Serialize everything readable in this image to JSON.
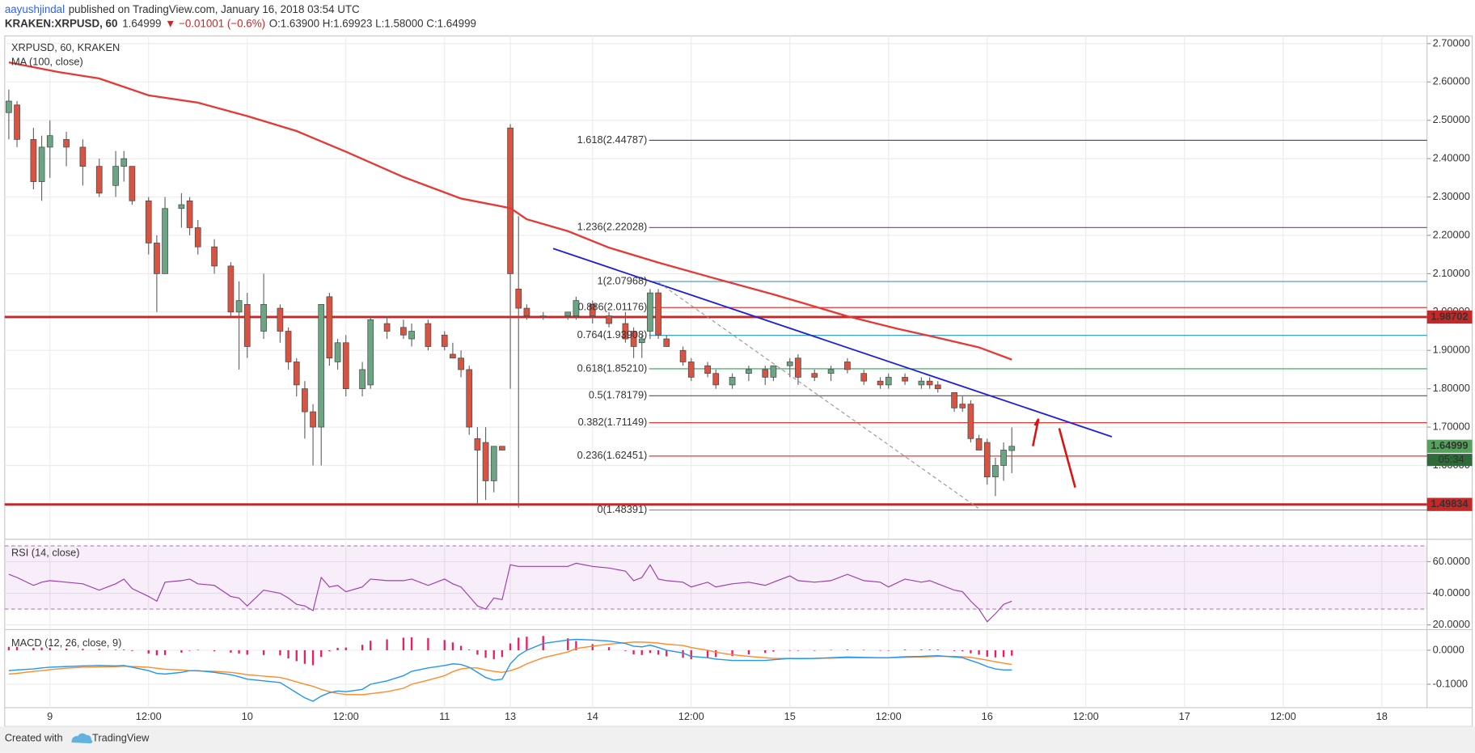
{
  "header": {
    "author": "aayushjindal",
    "published": "published on TradingView.com, January 16, 2018 03:54 UTC",
    "symbol": "KRAKEN:XRPUSD, 60",
    "price": "1.64999",
    "change": "▼ −0.01001 (−0.6%)",
    "ohlc": "O:1.63900 H:1.69923 L:1.58000 C:1.64999"
  },
  "footer": {
    "created": "Created with",
    "brand": "TradingView"
  },
  "chart_data": {
    "type": "candlestick",
    "title": "XRPUSD, 60, KRAKEN",
    "up_color": "#6ba583",
    "down_color": "#d75442",
    "xlim": [
      -0.5,
      172.5
    ],
    "xticks": [
      {
        "value": 5,
        "label": "9"
      },
      {
        "value": 17,
        "label": "12:00"
      },
      {
        "value": 29,
        "label": "10"
      },
      {
        "value": 41,
        "label": "12:00"
      },
      {
        "value": 53,
        "label": "11"
      },
      {
        "value": 61,
        "label": "13"
      },
      {
        "value": 71,
        "label": "14"
      },
      {
        "value": 83,
        "label": "12:00"
      },
      {
        "value": 95,
        "label": "15"
      },
      {
        "value": 107,
        "label": "12:00"
      },
      {
        "value": 119,
        "label": "16"
      },
      {
        "value": 131,
        "label": "12:00"
      },
      {
        "value": 143,
        "label": "17"
      },
      {
        "value": 155,
        "label": "12:00"
      },
      {
        "value": 167,
        "label": "18"
      }
    ],
    "ylim": [
      1.41,
      2.72
    ],
    "yticks": [
      {
        "value": 2.7,
        "label": "2.70000"
      },
      {
        "value": 2.6,
        "label": "2.60000"
      },
      {
        "value": 2.5,
        "label": "2.50000"
      },
      {
        "value": 2.4,
        "label": "2.40000"
      },
      {
        "value": 2.3,
        "label": "2.30000"
      },
      {
        "value": 2.2,
        "label": "2.20000"
      },
      {
        "value": 2.1,
        "label": "2.10000"
      },
      {
        "value": 2.0,
        "label": "2.00000"
      },
      {
        "value": 1.9,
        "label": "1.90000"
      },
      {
        "value": 1.8,
        "label": "1.80000"
      },
      {
        "value": 1.7,
        "label": "1.70000"
      },
      {
        "value": 1.6,
        "label": "1.60000"
      }
    ],
    "grid": true,
    "candles": {
      "x": [
        0,
        1,
        3,
        4,
        5,
        7,
        9,
        11,
        13,
        14,
        15,
        17,
        18,
        19,
        21,
        22,
        23,
        25,
        27,
        28,
        29,
        31,
        33,
        34,
        35,
        36,
        37,
        38,
        39,
        40,
        41,
        43,
        44,
        46,
        48,
        49,
        51,
        53,
        54,
        55,
        56,
        57,
        58,
        59,
        60,
        61,
        62,
        63,
        65,
        68,
        69,
        71,
        73,
        75,
        76,
        77,
        78,
        79,
        80,
        82,
        83,
        85,
        86,
        88,
        90,
        92,
        93,
        95,
        96,
        98,
        100,
        102,
        104,
        106,
        107,
        109,
        111,
        112,
        113,
        115,
        116,
        117,
        118,
        119,
        120,
        121,
        122
      ],
      "open": [
        2.52,
        2.54,
        2.45,
        2.34,
        2.43,
        2.45,
        2.43,
        2.38,
        2.33,
        2.38,
        2.38,
        2.29,
        2.18,
        2.1,
        2.27,
        2.29,
        2.22,
        2.17,
        2.12,
        2.0,
        2.02,
        1.95,
        2.01,
        1.95,
        1.87,
        1.8,
        1.74,
        1.7,
        2.04,
        1.87,
        1.92,
        1.8,
        1.81,
        1.97,
        1.96,
        1.93,
        1.97,
        1.94,
        1.89,
        1.88,
        1.85,
        1.67,
        1.66,
        1.56,
        1.65,
        2.48,
        2.06,
        2.01,
        1.99,
        1.99,
        1.99,
        2.02,
        1.99,
        1.97,
        1.95,
        1.92,
        1.95,
        2.05,
        1.93,
        1.9,
        1.87,
        1.86,
        1.84,
        1.81,
        1.84,
        1.85,
        1.83,
        1.86,
        1.88,
        1.84,
        1.84,
        1.87,
        1.84,
        1.82,
        1.81,
        1.83,
        1.81,
        1.82,
        1.81,
        1.79,
        1.76,
        1.76,
        1.67,
        1.66,
        1.57,
        1.6,
        1.639
      ],
      "high": [
        2.58,
        2.55,
        2.48,
        2.46,
        2.5,
        2.47,
        2.45,
        2.4,
        2.42,
        2.42,
        2.38,
        2.3,
        2.2,
        2.3,
        2.31,
        2.3,
        2.24,
        2.19,
        2.13,
        2.08,
        2.05,
        2.1,
        2.02,
        1.96,
        1.88,
        1.82,
        1.76,
        2.02,
        2.05,
        1.93,
        1.94,
        1.87,
        1.99,
        1.99,
        1.98,
        1.97,
        1.98,
        1.95,
        1.92,
        1.9,
        1.86,
        1.7,
        1.7,
        1.65,
        1.65,
        2.49,
        2.25,
        2.02,
        2.0,
        2.0,
        2.04,
        2.03,
        2.0,
        2.0,
        1.96,
        1.94,
        2.06,
        2.06,
        1.94,
        1.91,
        1.88,
        1.87,
        1.85,
        1.84,
        1.86,
        1.86,
        1.86,
        1.88,
        1.89,
        1.85,
        1.86,
        1.88,
        1.85,
        1.83,
        1.84,
        1.84,
        1.83,
        1.83,
        1.82,
        1.79,
        1.78,
        1.77,
        1.68,
        1.67,
        1.62,
        1.66,
        1.69923
      ],
      "low": [
        2.45,
        2.43,
        2.32,
        2.29,
        2.35,
        2.38,
        2.33,
        2.3,
        2.3,
        2.34,
        2.28,
        2.15,
        2.0,
        2.1,
        2.22,
        2.2,
        2.15,
        2.1,
        1.99,
        1.85,
        1.88,
        1.93,
        1.92,
        1.85,
        1.78,
        1.67,
        1.6,
        1.6,
        1.86,
        1.85,
        1.78,
        1.78,
        1.8,
        1.93,
        1.93,
        1.91,
        1.9,
        1.9,
        1.88,
        1.83,
        1.68,
        1.5,
        1.51,
        1.53,
        1.64,
        1.8,
        1.49,
        1.98,
        1.98,
        1.98,
        1.98,
        1.97,
        1.96,
        1.92,
        1.88,
        1.88,
        1.93,
        1.93,
        1.91,
        1.86,
        1.82,
        1.83,
        1.8,
        1.8,
        1.82,
        1.81,
        1.82,
        1.83,
        1.81,
        1.82,
        1.82,
        1.84,
        1.81,
        1.8,
        1.8,
        1.81,
        1.8,
        1.8,
        1.79,
        1.74,
        1.74,
        1.66,
        1.64,
        1.55,
        1.52,
        1.56,
        1.58
      ],
      "close": [
        2.55,
        2.45,
        2.34,
        2.43,
        2.46,
        2.43,
        2.38,
        2.31,
        2.38,
        2.4,
        2.29,
        2.18,
        2.1,
        2.27,
        2.28,
        2.22,
        2.17,
        2.12,
        2.0,
        2.03,
        1.91,
        2.02,
        1.95,
        1.87,
        1.81,
        1.74,
        1.7,
        2.02,
        1.88,
        1.92,
        1.8,
        1.85,
        1.98,
        1.95,
        1.94,
        1.95,
        1.91,
        1.91,
        1.88,
        1.85,
        1.7,
        1.64,
        1.56,
        1.65,
        1.64,
        2.1,
        2.01,
        1.99,
        1.99,
        2.0,
        2.03,
        1.99,
        1.97,
        1.93,
        1.91,
        1.93,
        2.05,
        1.94,
        1.91,
        1.87,
        1.83,
        1.84,
        1.81,
        1.83,
        1.85,
        1.83,
        1.86,
        1.87,
        1.83,
        1.83,
        1.85,
        1.85,
        1.82,
        1.81,
        1.83,
        1.82,
        1.82,
        1.81,
        1.8,
        1.75,
        1.75,
        1.67,
        1.64,
        1.57,
        1.6,
        1.64,
        1.64999
      ]
    },
    "ma": {
      "name": "MA (100, close)",
      "color": "#e53935",
      "x": [
        0,
        6,
        11,
        17,
        23,
        29,
        35,
        41,
        48,
        55,
        61,
        63,
        68,
        73,
        79,
        86,
        93,
        97,
        102,
        108,
        113,
        118,
        122
      ],
      "values": [
        2.651,
        2.626,
        2.609,
        2.565,
        2.546,
        2.511,
        2.472,
        2.418,
        2.352,
        2.296,
        2.271,
        2.242,
        2.211,
        2.168,
        2.129,
        2.087,
        2.046,
        2.021,
        1.989,
        1.957,
        1.933,
        1.908,
        1.876
      ]
    },
    "fib_levels": [
      {
        "label": "1.618(2.44787)",
        "value": 2.44787,
        "color": "#3a3ac2"
      },
      {
        "label": "1.236(2.22028)",
        "value": 2.22028,
        "color": "#a83cc0"
      },
      {
        "label": "1(2.07968)",
        "value": 2.07968,
        "color": "#4a90c8"
      },
      {
        "label": "0.886(2.01176)",
        "value": 2.01176,
        "color": "#e53935"
      },
      {
        "label": "0.764(1.93908)",
        "value": 1.93908,
        "color": "#2196c8"
      },
      {
        "label": "0.618(1.85210)",
        "value": 1.8521,
        "color": "#2aa35a"
      },
      {
        "label": "0.5(1.78179)",
        "value": 1.78179,
        "color": "#555555"
      },
      {
        "label": "0.382(1.71149)",
        "value": 1.71149,
        "color": "#e53935"
      },
      {
        "label": "0.236(1.62451)",
        "value": 1.62451,
        "color": "#e53935"
      },
      {
        "label": "0(1.48391)",
        "value": 1.48391,
        "color": "#888888"
      }
    ],
    "levels": [
      1.98702,
      1.49834
    ],
    "level_color": "#c62828",
    "last_price": 1.64999,
    "last_color": "#53a35a",
    "countdown": "05:34",
    "rsi": {
      "title": "RSI (14, close)",
      "color": "#9c3fae",
      "ylim": [
        17.6,
        73
      ],
      "yticks": [
        {
          "value": 60,
          "label": "60.0000"
        },
        {
          "value": 40,
          "label": "40.0000"
        },
        {
          "value": 20,
          "label": "20.0000"
        }
      ],
      "bands": [
        30,
        70
      ],
      "values": [
        52,
        50,
        45,
        47,
        48,
        47,
        46,
        42,
        46,
        49,
        43,
        38,
        35,
        47,
        48,
        49,
        46,
        45,
        38,
        37,
        32,
        42,
        40,
        37,
        33,
        32,
        29,
        50,
        44,
        45,
        41,
        44,
        49,
        48,
        48,
        49,
        45,
        49,
        46,
        44,
        38,
        32,
        30,
        37,
        36,
        58,
        57,
        57,
        57,
        57,
        59,
        57,
        56,
        54,
        48,
        50,
        58,
        49,
        48,
        47,
        44,
        47,
        44,
        46,
        47,
        45,
        47,
        51,
        48,
        47,
        48,
        52,
        48,
        47,
        44,
        49,
        47,
        48,
        46,
        42,
        41,
        35,
        30,
        22,
        27,
        33,
        35
      ]
    },
    "macd": {
      "title": "MACD (12, 26, close, 9)",
      "ylim": [
        -0.169,
        0.058
      ],
      "yticks": [
        {
          "value": 0,
          "label": "0.0000"
        },
        {
          "value": -0.1,
          "label": "-0.1000"
        }
      ],
      "macd": {
        "color": "#2196f3",
        "values": [
          -0.06,
          -0.058,
          -0.055,
          -0.052,
          -0.05,
          -0.048,
          -0.046,
          -0.045,
          -0.046,
          -0.045,
          -0.05,
          -0.06,
          -0.068,
          -0.07,
          -0.065,
          -0.06,
          -0.06,
          -0.065,
          -0.072,
          -0.078,
          -0.085,
          -0.09,
          -0.095,
          -0.11,
          -0.125,
          -0.14,
          -0.15,
          -0.135,
          -0.125,
          -0.12,
          -0.122,
          -0.115,
          -0.1,
          -0.09,
          -0.075,
          -0.062,
          -0.052,
          -0.045,
          -0.04,
          -0.042,
          -0.05,
          -0.065,
          -0.08,
          -0.088,
          -0.085,
          -0.04,
          -0.015,
          0.0,
          0.02,
          0.03,
          0.032,
          0.03,
          0.027,
          0.02,
          0.012,
          0.01,
          0.015,
          0.008,
          0.0,
          -0.008,
          -0.018,
          -0.022,
          -0.026,
          -0.03,
          -0.03,
          -0.03,
          -0.028,
          -0.024,
          -0.025,
          -0.024,
          -0.022,
          -0.02,
          -0.021,
          -0.022,
          -0.022,
          -0.019,
          -0.018,
          -0.017,
          -0.016,
          -0.02,
          -0.022,
          -0.03,
          -0.038,
          -0.048,
          -0.055,
          -0.058,
          -0.058
        ]
      },
      "signal": {
        "color": "#ff8a29",
        "values": [
          -0.07,
          -0.068,
          -0.062,
          -0.06,
          -0.057,
          -0.053,
          -0.05,
          -0.049,
          -0.048,
          -0.047,
          -0.048,
          -0.05,
          -0.053,
          -0.056,
          -0.058,
          -0.06,
          -0.061,
          -0.062,
          -0.065,
          -0.068,
          -0.072,
          -0.076,
          -0.08,
          -0.086,
          -0.093,
          -0.1,
          -0.106,
          -0.115,
          -0.122,
          -0.127,
          -0.13,
          -0.131,
          -0.128,
          -0.122,
          -0.112,
          -0.1,
          -0.088,
          -0.075,
          -0.063,
          -0.055,
          -0.052,
          -0.052,
          -0.058,
          -0.062,
          -0.065,
          -0.06,
          -0.052,
          -0.04,
          -0.022,
          -0.005,
          0.005,
          0.012,
          0.018,
          0.022,
          0.024,
          0.024,
          0.023,
          0.021,
          0.018,
          0.014,
          0.008,
          0.0,
          -0.006,
          -0.013,
          -0.018,
          -0.022,
          -0.024,
          -0.024,
          -0.024,
          -0.024,
          -0.023,
          -0.022,
          -0.022,
          -0.022,
          -0.022,
          -0.021,
          -0.02,
          -0.019,
          -0.018,
          -0.018,
          -0.019,
          -0.021,
          -0.025,
          -0.029,
          -0.034,
          -0.038,
          -0.042
        ]
      },
      "histogram": {
        "color": "#e91e63",
        "values": [
          0.01,
          0.01,
          0.007,
          0.008,
          0.007,
          0.005,
          0.004,
          0.004,
          0.002,
          0.002,
          -0.002,
          -0.01,
          -0.015,
          -0.014,
          -0.007,
          0,
          0.001,
          -0.003,
          -0.007,
          -0.01,
          -0.013,
          -0.014,
          -0.015,
          -0.024,
          -0.032,
          -0.04,
          -0.044,
          -0.02,
          -0.003,
          0.007,
          0.008,
          0.016,
          0.028,
          0.032,
          0.037,
          0.038,
          0.036,
          0.03,
          0.023,
          0.013,
          0.002,
          -0.013,
          -0.022,
          -0.026,
          -0.02,
          0.02,
          0.037,
          0.04,
          0.042,
          0.035,
          0.027,
          0.018,
          0.009,
          -0.002,
          -0.012,
          -0.014,
          -0.008,
          -0.013,
          -0.018,
          -0.022,
          -0.026,
          -0.022,
          -0.02,
          -0.017,
          -0.012,
          -0.008,
          -0.004,
          0,
          -0.001,
          0,
          0.001,
          0.002,
          0.001,
          0,
          0,
          0.002,
          0.002,
          0.002,
          0.002,
          -0.002,
          -0.003,
          -0.009,
          -0.013,
          -0.019,
          -0.021,
          -0.02,
          -0.016
        ]
      }
    }
  }
}
